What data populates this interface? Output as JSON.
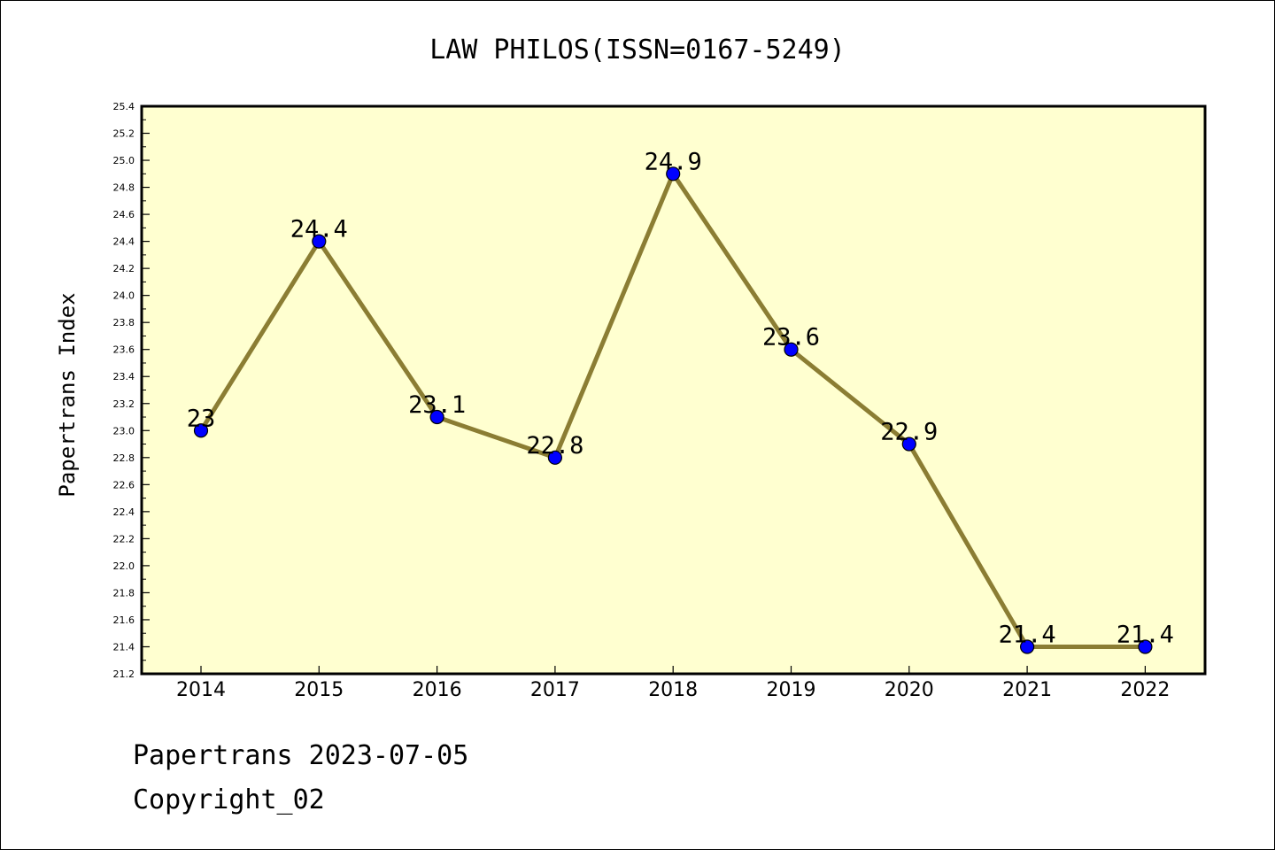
{
  "chart_data": {
    "type": "line",
    "title": "LAW PHILOS(ISSN=0167-5249)",
    "xlabel": "",
    "ylabel": "Papertrans Index",
    "categories": [
      "2014",
      "2015",
      "2016",
      "2017",
      "2018",
      "2019",
      "2020",
      "2021",
      "2022"
    ],
    "series": [
      {
        "values": [
          23,
          24.4,
          23.1,
          22.8,
          24.9,
          23.6,
          22.9,
          21.4,
          21.4
        ],
        "data_labels": [
          "23",
          "24.4",
          "23.1",
          "22.8",
          "24.9",
          "23.6",
          "22.9",
          "21.4",
          "21.4"
        ]
      }
    ],
    "ylim": [
      21.2,
      25.4
    ],
    "yticks": [
      "21.2",
      "21.4",
      "21.6",
      "21.8",
      "22.0",
      "22.2",
      "22.4",
      "22.6",
      "22.8",
      "23.0",
      "23.2",
      "23.4",
      "23.6",
      "23.8",
      "24.0",
      "24.2",
      "24.4",
      "24.6",
      "24.8",
      "25.0",
      "25.2",
      "25.4"
    ],
    "grid": false,
    "colors": {
      "plot_background": "#ffffd0",
      "line": "#8b7d33",
      "marker": "#0000ff"
    }
  },
  "footer": {
    "date_text": "Papertrans 2023-07-05",
    "copyright_text": "Copyright_02"
  }
}
